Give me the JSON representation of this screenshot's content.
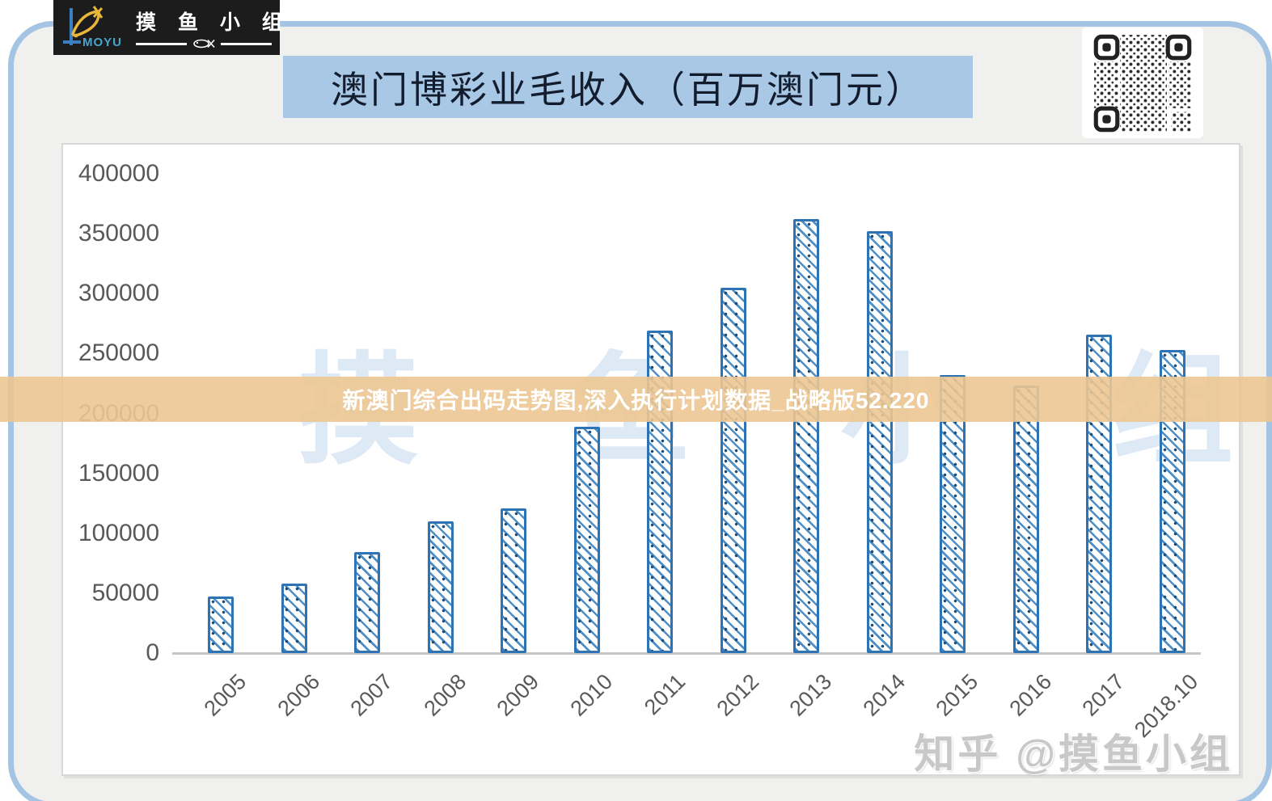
{
  "logo": {
    "brand_en": "MOYU",
    "brand_cn": "摸 鱼 小 组"
  },
  "title": {
    "text": "澳门博彩业毛收入（百万澳门元）"
  },
  "banner": {
    "text": "新澳门综合出码走势图,深入执行计划数据_战略版52.220"
  },
  "watermark": {
    "chart_text": "摸 鱼 小 组",
    "corner_text": "知乎 @摸鱼小组"
  },
  "icons": {
    "qr_code": "qr-code",
    "fish_logo": "fish-axis-logo"
  },
  "colors": {
    "card_border": "#a3c4e2",
    "card_bg": "#f0f0ee",
    "title_bg": "#a8c8e6",
    "banner_bg": "#ecc692",
    "bar_border": "#2e74b5",
    "bar_stripe": "#4e8fc7",
    "bar_dot": "#1e4e79",
    "axis_text": "#595959",
    "logo_bg": "#1c1c1c"
  },
  "chart_data": {
    "type": "bar",
    "title": "澳门博彩业毛收入（百万澳门元）",
    "xlabel": "",
    "ylabel": "",
    "categories": [
      "2005",
      "2006",
      "2007",
      "2008",
      "2009",
      "2010",
      "2011",
      "2012",
      "2013",
      "2014",
      "2015",
      "2016",
      "2017",
      "2018.10"
    ],
    "values": [
      47000,
      58000,
      84000,
      110000,
      121000,
      189000,
      269000,
      305000,
      362000,
      352000,
      232000,
      223000,
      266000,
      253000
    ],
    "ylim": [
      0,
      400000
    ],
    "yticks": [
      0,
      50000,
      100000,
      150000,
      200000,
      250000,
      300000,
      350000,
      400000
    ],
    "grid": false,
    "legend": "none",
    "bar_style": "diagonal-hatch-with-dots"
  }
}
